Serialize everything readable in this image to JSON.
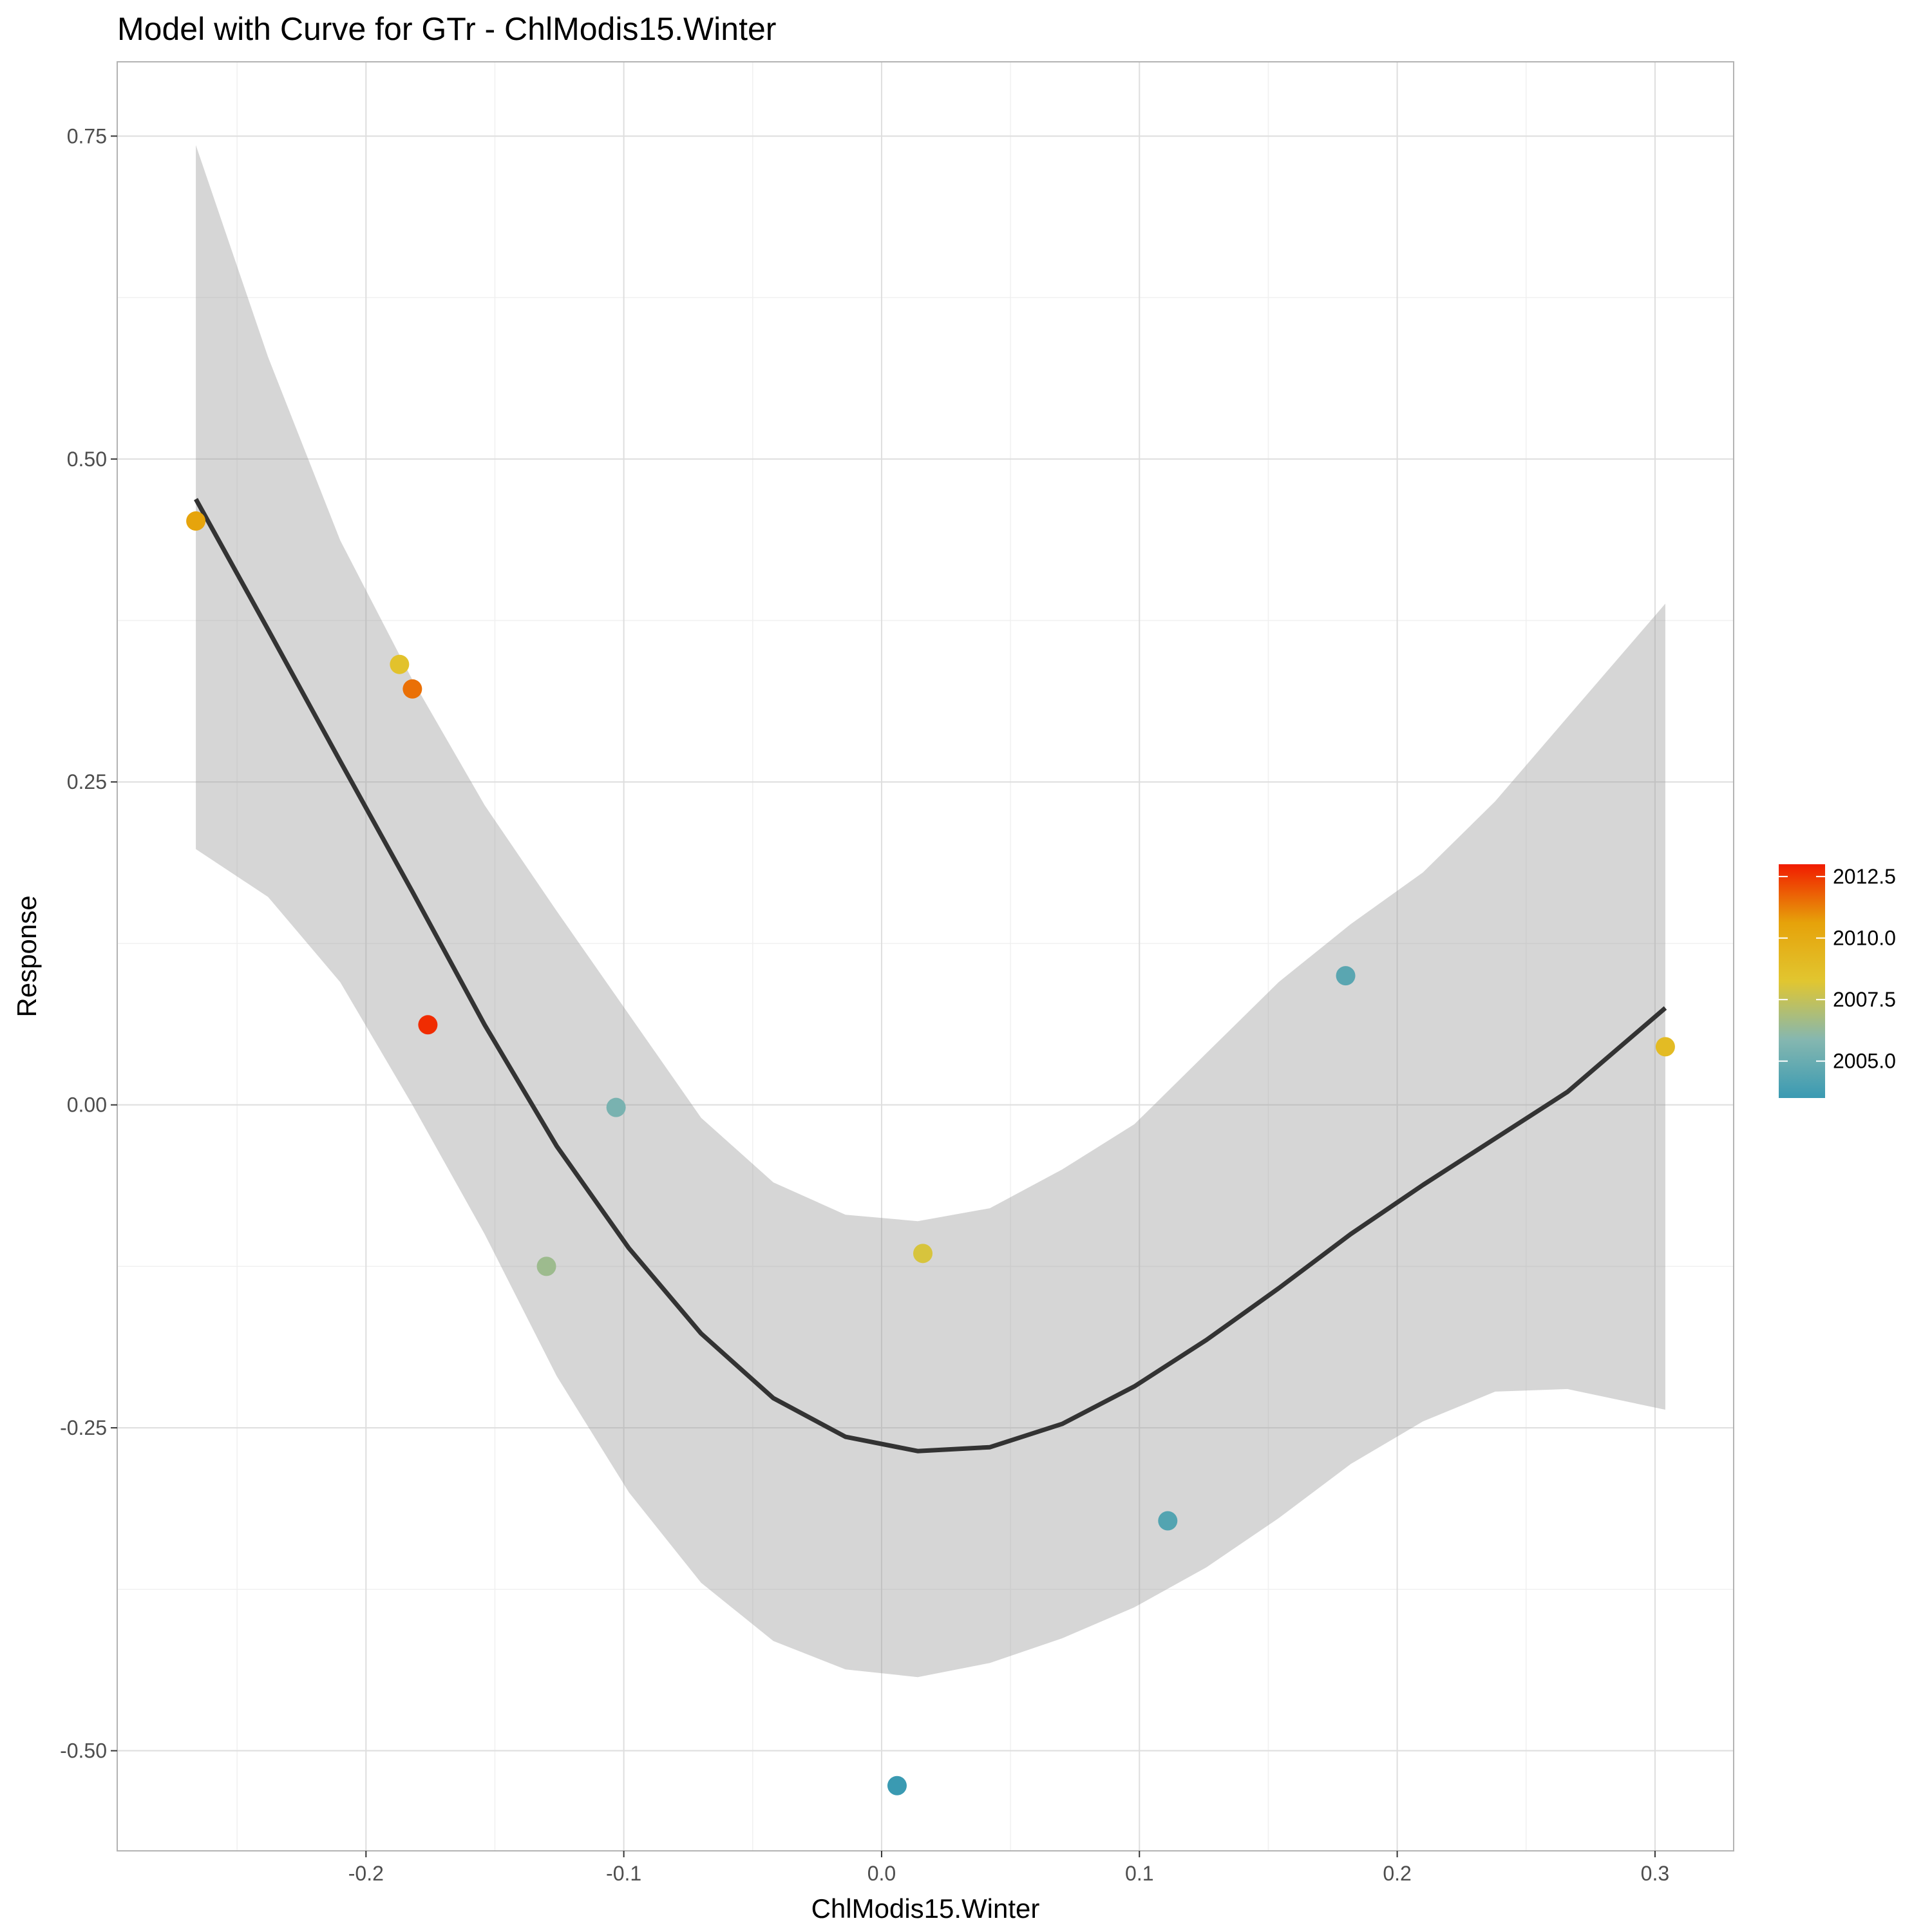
{
  "chart_data": {
    "type": "scatter",
    "title": "Model with Curve for GTr - ChlModis15.Winter",
    "xlabel": "ChlModis15.Winter",
    "ylabel": "Response",
    "xlim": [
      -0.2965,
      0.3305
    ],
    "ylim": [
      -0.5775,
      0.8075
    ],
    "x_ticks": [
      -0.2,
      -0.1,
      0.0,
      0.1,
      0.2,
      0.3
    ],
    "x_tick_labels": [
      "-0.2",
      "-0.1",
      "0.0",
      "0.1",
      "0.2",
      "0.3"
    ],
    "y_ticks": [
      -0.5,
      -0.25,
      0.0,
      0.25,
      0.5,
      0.75
    ],
    "y_tick_labels": [
      "-0.50",
      "-0.25",
      "0.00",
      "0.25",
      "0.50",
      "0.75"
    ],
    "grid": true,
    "legend": {
      "position": "right",
      "type": "colorbar",
      "range": [
        2003.5,
        2013.0
      ],
      "breaks": [
        2005.0,
        2007.5,
        2010.0,
        2012.5
      ],
      "labels": [
        "2005.0",
        "2007.5",
        "2010.0",
        "2012.5"
      ],
      "colors": [
        "#3a9ab2",
        "#85b7b0",
        "#e1c630",
        "#e6a20a",
        "#f11b00"
      ]
    },
    "points": [
      {
        "x": -0.266,
        "y": 0.452,
        "year": 2010.5
      },
      {
        "x": -0.187,
        "y": 0.341,
        "year": 2008.5
      },
      {
        "x": -0.182,
        "y": 0.322,
        "year": 2011.5
      },
      {
        "x": -0.176,
        "y": 0.062,
        "year": 2012.7
      },
      {
        "x": -0.13,
        "y": -0.125,
        "year": 2006.5
      },
      {
        "x": -0.103,
        "y": -0.002,
        "year": 2005.5
      },
      {
        "x": 0.016,
        "y": -0.115,
        "year": 2008.0
      },
      {
        "x": 0.006,
        "y": -0.527,
        "year": 2003.5
      },
      {
        "x": 0.111,
        "y": -0.322,
        "year": 2004.3
      },
      {
        "x": 0.18,
        "y": 0.1,
        "year": 2004.5
      },
      {
        "x": 0.304,
        "y": 0.045,
        "year": 2009.0
      }
    ],
    "smooth": {
      "x": [
        -0.266,
        -0.238,
        -0.21,
        -0.182,
        -0.154,
        -0.126,
        -0.098,
        -0.07,
        -0.042,
        -0.014,
        0.014,
        0.042,
        0.07,
        0.098,
        0.126,
        0.154,
        0.182,
        0.21,
        0.238,
        0.266,
        0.304
      ],
      "y": [
        0.469,
        0.368,
        0.266,
        0.165,
        0.062,
        -0.032,
        -0.111,
        -0.177,
        -0.227,
        -0.257,
        -0.268,
        -0.265,
        -0.247,
        -0.218,
        -0.182,
        -0.142,
        -0.1,
        -0.062,
        -0.026,
        0.01,
        0.075
      ],
      "lower": [
        0.198,
        0.161,
        0.095,
        0.0,
        -0.1,
        -0.21,
        -0.3,
        -0.37,
        -0.415,
        -0.437,
        -0.443,
        -0.432,
        -0.413,
        -0.389,
        -0.358,
        -0.32,
        -0.278,
        -0.245,
        -0.222,
        -0.22,
        -0.236
      ],
      "upper": [
        0.743,
        0.579,
        0.437,
        0.329,
        0.232,
        0.15,
        0.07,
        -0.01,
        -0.06,
        -0.085,
        -0.09,
        -0.08,
        -0.05,
        -0.015,
        0.04,
        0.095,
        0.14,
        0.18,
        0.235,
        0.3,
        0.388
      ]
    }
  }
}
